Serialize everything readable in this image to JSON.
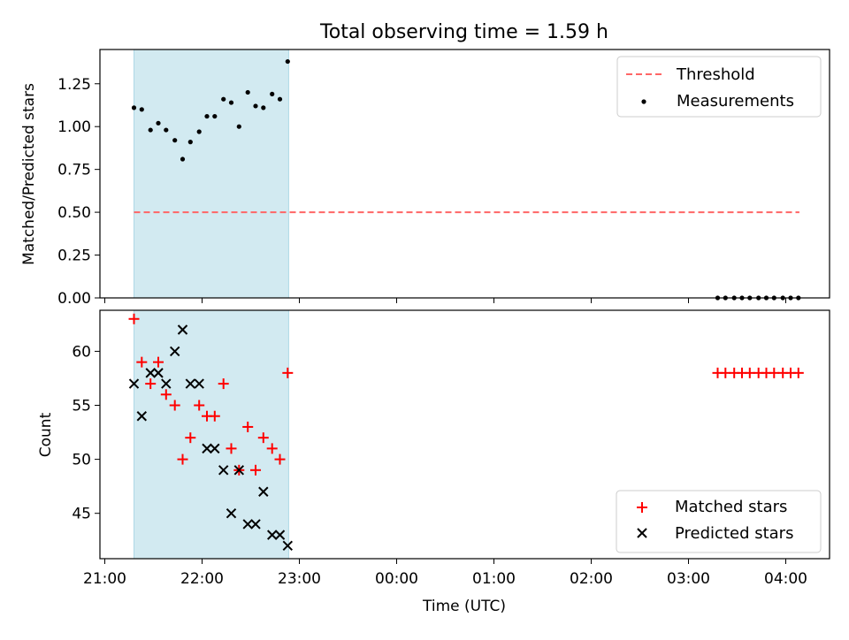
{
  "figure": {
    "title": "Total observing time = 1.59 h"
  },
  "chart_data": [
    {
      "type": "scatter",
      "panel": "top",
      "ylabel": "Matched/Predicted stars",
      "xlabel": "",
      "x_axis": "Time (UTC), hours since 21:00",
      "xlim": [
        -0.05,
        7.45
      ],
      "ylim": [
        0.0,
        1.45
      ],
      "yticks": [
        0.0,
        0.25,
        0.5,
        0.75,
        1.0,
        1.25
      ],
      "ytick_labels": [
        "0.00",
        "0.25",
        "0.50",
        "0.75",
        "1.00",
        "1.25"
      ],
      "xticks": [
        0,
        1,
        2,
        3,
        4,
        5,
        6,
        7
      ],
      "shaded_region": {
        "x": [
          0.3,
          1.89
        ],
        "color": "#add8e6"
      },
      "legend_position": "upper right",
      "grid": false,
      "series": [
        {
          "name": "Threshold",
          "kind": "line",
          "style": "dashed",
          "color": "#ff6666",
          "x": [
            0.3,
            7.14
          ],
          "y": [
            0.5,
            0.5
          ]
        },
        {
          "name": "Measurements",
          "kind": "scatter",
          "marker": "dot",
          "color": "#000000",
          "x": [
            0.3,
            0.38,
            0.47,
            0.55,
            0.63,
            0.72,
            0.8,
            0.88,
            0.97,
            1.05,
            1.13,
            1.22,
            1.3,
            1.38,
            1.47,
            1.55,
            1.63,
            1.72,
            1.8,
            1.88,
            6.3,
            6.38,
            6.47,
            6.55,
            6.63,
            6.72,
            6.8,
            6.88,
            6.97,
            7.05,
            7.13
          ],
          "y": [
            1.11,
            1.1,
            0.98,
            1.02,
            0.98,
            0.92,
            0.81,
            0.91,
            0.97,
            1.06,
            1.06,
            1.16,
            1.14,
            1.0,
            1.2,
            1.12,
            1.11,
            1.19,
            1.16,
            1.38,
            0,
            0,
            0,
            0,
            0,
            0,
            0,
            0,
            0,
            0,
            0
          ]
        }
      ]
    },
    {
      "type": "scatter",
      "panel": "bottom",
      "ylabel": "Count",
      "xlabel": "Time (UTC)",
      "x_axis": "Time (UTC), hours since 21:00",
      "xlim": [
        -0.05,
        7.45
      ],
      "ylim": [
        40.8,
        63.8
      ],
      "yticks": [
        45,
        50,
        55,
        60
      ],
      "ytick_labels": [
        "45",
        "50",
        "55",
        "60"
      ],
      "xticks": [
        0,
        1,
        2,
        3,
        4,
        5,
        6,
        7
      ],
      "xtick_labels": [
        "21:00",
        "22:00",
        "23:00",
        "00:00",
        "01:00",
        "02:00",
        "03:00",
        "04:00"
      ],
      "shaded_region": {
        "x": [
          0.3,
          1.89
        ],
        "color": "#add8e6"
      },
      "legend_position": "lower right",
      "grid": false,
      "series": [
        {
          "name": "Matched stars",
          "kind": "scatter",
          "marker": "plus",
          "color": "#ff0000",
          "x": [
            0.3,
            0.38,
            0.47,
            0.55,
            0.63,
            0.72,
            0.8,
            0.88,
            0.97,
            1.05,
            1.13,
            1.22,
            1.3,
            1.38,
            1.47,
            1.55,
            1.63,
            1.72,
            1.8,
            1.88,
            6.3,
            6.38,
            6.47,
            6.55,
            6.63,
            6.72,
            6.8,
            6.88,
            6.97,
            7.05,
            7.13
          ],
          "y": [
            63,
            59,
            57,
            59,
            56,
            55,
            50,
            52,
            55,
            54,
            54,
            57,
            51,
            49,
            53,
            49,
            52,
            51,
            50,
            58,
            58,
            58,
            58,
            58,
            58,
            58,
            58,
            58,
            58,
            58,
            58
          ]
        },
        {
          "name": "Predicted stars",
          "kind": "scatter",
          "marker": "x",
          "color": "#000000",
          "x": [
            0.3,
            0.38,
            0.47,
            0.55,
            0.63,
            0.72,
            0.8,
            0.88,
            0.97,
            1.05,
            1.13,
            1.22,
            1.3,
            1.38,
            1.47,
            1.55,
            1.63,
            1.72,
            1.8,
            1.88
          ],
          "y": [
            57,
            54,
            58,
            58,
            57,
            60,
            62,
            57,
            57,
            51,
            51,
            49,
            45,
            49,
            44,
            44,
            47,
            43,
            43,
            42
          ]
        }
      ]
    }
  ]
}
